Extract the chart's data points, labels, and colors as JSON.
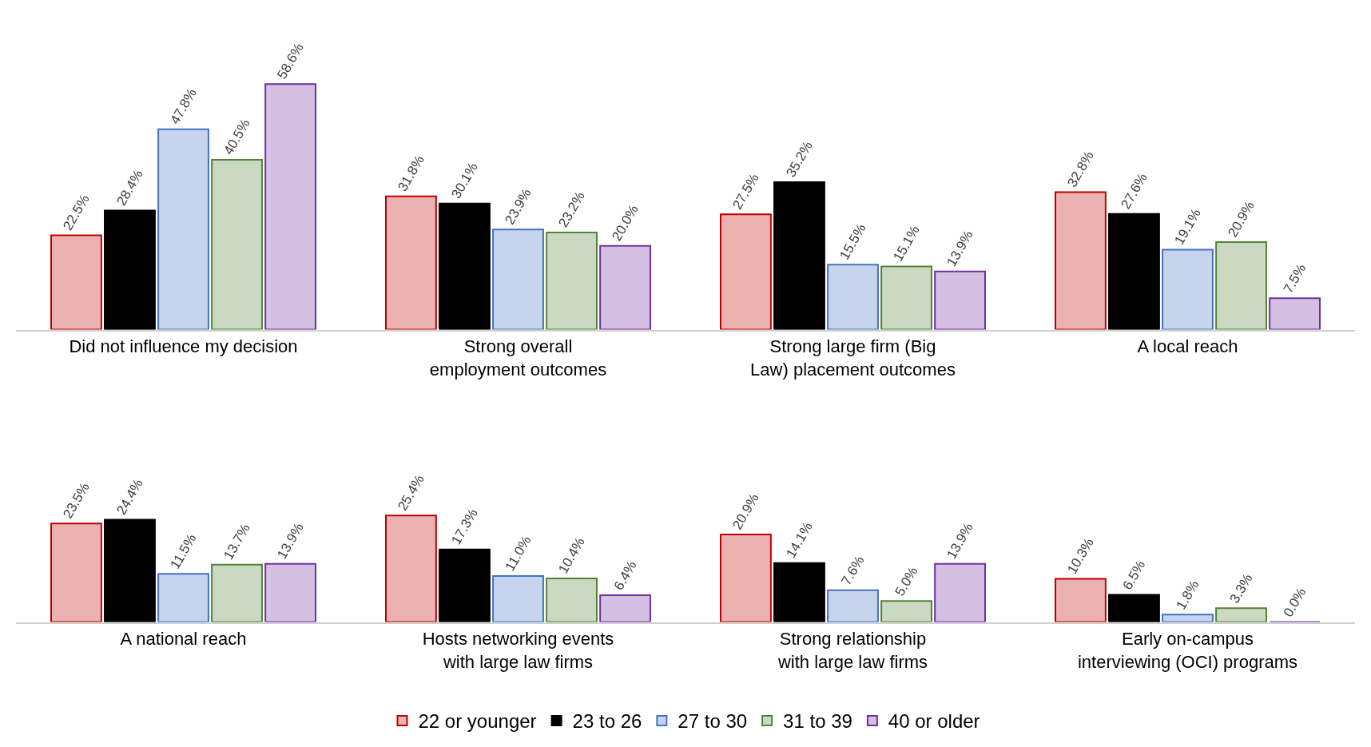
{
  "chart_data": [
    {
      "type": "bar",
      "categories": [
        "Did not influence my decision",
        "Strong overall employment outcomes",
        "Strong large firm (Big Law) placement outcomes",
        "A local reach"
      ],
      "legend": "bottom",
      "series": [
        {
          "name": "22 or younger",
          "color": "#c00000",
          "values": [
            22.5,
            31.8,
            27.5,
            32.8
          ],
          "value_labels": [
            "22.5%",
            "31.8%",
            "27.5%",
            "32.8%"
          ]
        },
        {
          "name": "23 to 26",
          "color": "#000000",
          "values": [
            28.4,
            30.1,
            35.2,
            27.6
          ],
          "value_labels": [
            "28.4%",
            "30.1%",
            "35.2%",
            "27.6%"
          ]
        },
        {
          "name": "27 to 30",
          "color": "#4472c4",
          "values": [
            47.8,
            23.9,
            15.5,
            19.1
          ],
          "value_labels": [
            "47.8%",
            "23.9%",
            "15.5%",
            "19.1%"
          ]
        },
        {
          "name": "31 to 39",
          "color": "#548235",
          "values": [
            40.5,
            23.2,
            15.1,
            20.9
          ],
          "value_labels": [
            "40.5%",
            "23.2%",
            "15.1%",
            "20.9%"
          ]
        },
        {
          "name": "40 or older",
          "color": "#7030a0",
          "values": [
            58.6,
            20.0,
            13.9,
            7.5
          ],
          "value_labels": [
            "58.6%",
            "20.0%",
            "13.9%",
            "7.5%"
          ]
        }
      ]
    },
    {
      "type": "bar",
      "categories": [
        "A national reach",
        "Hosts networking events with large law firms",
        "Strong relationship with large law firms",
        "Early on-campus interviewing (OCI) programs"
      ],
      "series": [
        {
          "color": "#c00000",
          "values": [
            23.5,
            25.4,
            20.9,
            10.3
          ],
          "value_labels": [
            "23.5%",
            "25.4%",
            "20.9%",
            "10.3%"
          ]
        },
        {
          "color": "#000000",
          "values": [
            24.4,
            17.3,
            14.1,
            6.5
          ],
          "value_labels": [
            "24.4%",
            "17.3%",
            "14.1%",
            "6.5%"
          ]
        },
        {
          "color": "#4472c4",
          "values": [
            11.5,
            11.0,
            7.6,
            1.8
          ],
          "value_labels": [
            "11.5%",
            "11.0%",
            "7.6%",
            "1.8%"
          ]
        },
        {
          "color": "#548235",
          "values": [
            13.7,
            10.4,
            5.0,
            3.3
          ],
          "value_labels": [
            "13.7%",
            "10.4%",
            "5.0%",
            "3.3%"
          ]
        },
        {
          "color": "#7030a0",
          "values": [
            13.9,
            6.4,
            13.9,
            0.0
          ],
          "value_labels": [
            "13.9%",
            "6.4%",
            "13.9%",
            "0.0%"
          ]
        }
      ]
    }
  ]
}
